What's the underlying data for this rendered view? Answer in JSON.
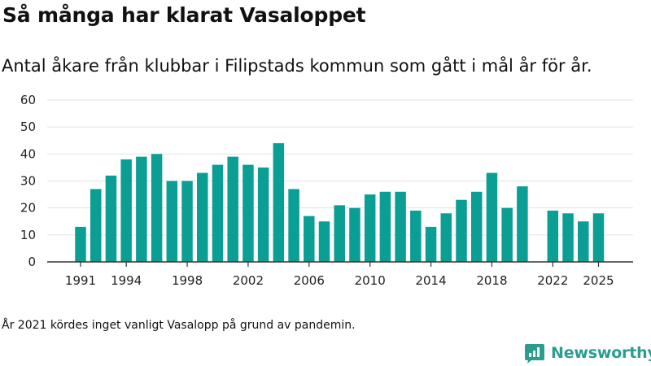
{
  "title": "Så många har klarat Vasaloppet",
  "subtitle": "Antal åkare från klubbar i Filipstads kommun som gått i mål år för år.",
  "footnote": "År 2021 kördes inget vanligt Vasalopp på grund av pandemin.",
  "brand": {
    "name": "Newsworthy",
    "icon": "newsworthy-logo-icon"
  },
  "colors": {
    "bar": "#0a9e94",
    "grid": "#e3e3e3",
    "axis": "#333333",
    "brand": "#2a9d8f"
  },
  "chart_data": {
    "type": "bar",
    "title": "Så många har klarat Vasaloppet",
    "xlabel": "",
    "ylabel": "",
    "ylim": [
      0,
      60
    ],
    "yticks": [
      0,
      10,
      20,
      30,
      40,
      50,
      60
    ],
    "xticks": [
      "1991",
      "1994",
      "1998",
      "2002",
      "2006",
      "2010",
      "2014",
      "2018",
      "2022",
      "2025"
    ],
    "categories": [
      1991,
      1992,
      1993,
      1994,
      1995,
      1996,
      1997,
      1998,
      1999,
      2000,
      2001,
      2002,
      2003,
      2004,
      2005,
      2006,
      2007,
      2008,
      2009,
      2010,
      2011,
      2012,
      2013,
      2014,
      2015,
      2016,
      2017,
      2018,
      2019,
      2020,
      2021,
      2022,
      2023,
      2024,
      2025
    ],
    "values": [
      13,
      27,
      32,
      38,
      39,
      40,
      30,
      30,
      33,
      36,
      39,
      36,
      35,
      44,
      27,
      17,
      15,
      21,
      20,
      25,
      26,
      26,
      19,
      13,
      18,
      23,
      26,
      33,
      20,
      28,
      null,
      19,
      18,
      15,
      18
    ],
    "grid": true,
    "legend": "none"
  }
}
